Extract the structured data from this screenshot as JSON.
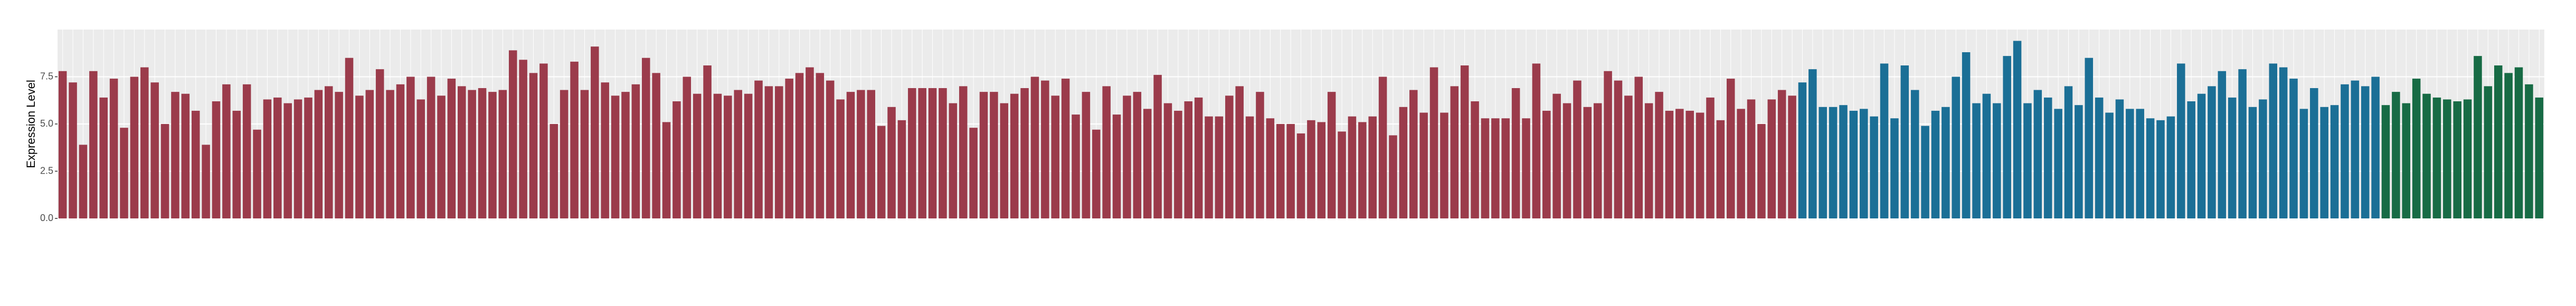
{
  "chart_data": {
    "type": "bar",
    "y_label": "Expression Level",
    "categories": [
      null,
      null,
      null,
      null,
      null,
      null,
      null,
      null,
      null,
      null,
      null,
      null,
      null,
      null,
      null,
      null,
      null,
      null,
      null,
      null,
      null,
      null,
      null,
      null,
      null,
      null,
      null,
      null,
      null,
      null,
      null,
      null,
      null,
      null,
      null,
      null,
      null,
      null,
      null,
      null,
      null,
      null,
      null,
      null,
      null,
      null,
      null,
      null,
      null,
      null,
      null,
      null,
      null,
      null,
      null,
      null,
      null,
      null,
      null,
      null,
      null,
      null,
      null,
      null,
      null,
      null,
      null,
      null,
      null,
      null,
      null,
      null,
      null,
      null,
      null,
      null,
      null,
      null,
      null,
      null,
      null,
      null,
      null,
      null,
      null,
      null,
      null,
      null,
      null,
      null,
      null,
      null,
      null,
      null,
      null,
      null,
      null,
      null,
      null,
      null,
      null,
      null,
      null,
      null,
      null,
      null,
      null,
      null,
      null,
      null,
      null,
      null,
      null,
      null,
      null,
      null,
      null,
      null,
      null,
      null,
      null,
      null,
      null,
      null,
      null,
      null,
      null,
      null,
      null,
      null,
      null,
      null,
      null,
      null,
      null,
      null,
      null,
      null,
      null,
      null,
      null,
      null,
      null,
      null,
      null,
      null,
      null,
      null,
      null,
      null,
      null,
      null,
      null,
      null,
      null,
      null,
      null,
      null,
      null,
      null,
      null,
      null,
      null,
      null,
      null,
      null,
      null,
      null,
      null,
      null,
      null,
      null,
      null,
      null,
      null,
      null,
      null,
      null,
      null,
      null,
      null,
      null,
      null,
      null,
      null,
      null,
      null,
      null,
      null,
      null,
      null,
      null,
      null,
      null,
      null,
      null,
      null,
      null,
      null,
      null,
      null,
      null,
      null,
      null,
      null,
      null,
      null,
      null,
      null,
      null,
      null,
      null,
      null,
      null,
      null,
      null,
      null,
      null,
      null,
      null,
      null,
      null,
      null,
      null,
      null,
      null,
      null,
      null,
      null,
      null,
      null,
      null,
      null,
      null,
      null,
      null,
      null,
      null,
      null,
      null,
      null,
      null,
      null
    ],
    "values": [
      7.8,
      7.2,
      3.9,
      7.8,
      6.4,
      7.4,
      4.8,
      7.5,
      8.0,
      7.2,
      5.0,
      6.7,
      6.6,
      5.7,
      3.9,
      6.2,
      7.1,
      5.7,
      7.1,
      4.7,
      6.3,
      6.4,
      6.1,
      6.3,
      6.4,
      6.8,
      7.0,
      6.7,
      8.5,
      6.5,
      6.8,
      7.9,
      6.8,
      7.1,
      7.5,
      6.3,
      7.5,
      6.5,
      7.4,
      7.0,
      6.8,
      6.9,
      6.7,
      6.8,
      8.9,
      8.4,
      7.7,
      8.2,
      5.0,
      6.8,
      8.3,
      6.8,
      9.1,
      7.2,
      6.5,
      6.7,
      7.1,
      8.5,
      7.7,
      5.1,
      6.2,
      7.5,
      6.6,
      8.1,
      6.6,
      6.5,
      6.8,
      6.6,
      7.3,
      7.0,
      7.0,
      7.4,
      7.7,
      8.0,
      7.7,
      7.3,
      6.3,
      6.7,
      6.8,
      6.8,
      4.9,
      5.9,
      5.2,
      6.9,
      6.9,
      6.9,
      6.9,
      6.1,
      7.0,
      4.8,
      6.7,
      6.7,
      6.1,
      6.6,
      6.9,
      7.5,
      7.3,
      6.5,
      7.4,
      5.5,
      6.7,
      4.7,
      7.0,
      5.5,
      6.5,
      6.7,
      5.8,
      7.6,
      6.1,
      5.7,
      6.2,
      6.4,
      5.4,
      5.4,
      6.5,
      7.0,
      5.4,
      6.7,
      5.3,
      5.0,
      5.0,
      4.5,
      5.2,
      5.1,
      6.7,
      4.6,
      5.4,
      5.1,
      5.4,
      7.5,
      4.4,
      5.9,
      6.8,
      5.6,
      8.0,
      5.6,
      7.0,
      8.1,
      6.2,
      5.3,
      5.3,
      5.3,
      6.9,
      5.3,
      8.2,
      5.7,
      6.6,
      6.1,
      7.3,
      5.9,
      6.1,
      7.8,
      7.3,
      6.5,
      7.5,
      6.1,
      6.7,
      5.7,
      5.8,
      5.7,
      5.6,
      6.4,
      5.2,
      7.4,
      5.8,
      6.3,
      5.0,
      6.3,
      6.8,
      6.5,
      7.2,
      7.9,
      5.9,
      5.9,
      6.0,
      5.7,
      5.8,
      5.4,
      8.2,
      5.3,
      8.1,
      6.8,
      4.9,
      5.7,
      5.9,
      7.5,
      8.8,
      6.1,
      6.6,
      6.1,
      8.6,
      9.4,
      6.1,
      6.8,
      6.4,
      5.8,
      7.0,
      6.0,
      8.5,
      6.4,
      5.6,
      6.3,
      5.8,
      5.8,
      5.3,
      5.2,
      5.4,
      8.2,
      6.2,
      6.6,
      7.0,
      7.8,
      6.4,
      7.9,
      5.9,
      6.3,
      8.2,
      8.0,
      7.4,
      5.8,
      6.9,
      5.9,
      6.0,
      7.1,
      7.3,
      7.0,
      7.5,
      6.0,
      6.7,
      6.1,
      7.4,
      6.6,
      6.4,
      6.3,
      6.2,
      6.3,
      8.6,
      7.0,
      8.1,
      7.7,
      8.0,
      7.1,
      6.4
    ],
    "colors": [
      "#9b3b4b",
      "#9b3b4b",
      "#9b3b4b",
      "#9b3b4b",
      "#9b3b4b",
      "#9b3b4b",
      "#9b3b4b",
      "#9b3b4b",
      "#9b3b4b",
      "#9b3b4b",
      "#9b3b4b",
      "#9b3b4b",
      "#9b3b4b",
      "#9b3b4b",
      "#9b3b4b",
      "#9b3b4b",
      "#9b3b4b",
      "#9b3b4b",
      "#9b3b4b",
      "#9b3b4b",
      "#9b3b4b",
      "#9b3b4b",
      "#9b3b4b",
      "#9b3b4b",
      "#9b3b4b",
      "#9b3b4b",
      "#9b3b4b",
      "#9b3b4b",
      "#9b3b4b",
      "#9b3b4b",
      "#9b3b4b",
      "#9b3b4b",
      "#9b3b4b",
      "#9b3b4b",
      "#9b3b4b",
      "#9b3b4b",
      "#9b3b4b",
      "#9b3b4b",
      "#9b3b4b",
      "#9b3b4b",
      "#9b3b4b",
      "#9b3b4b",
      "#9b3b4b",
      "#9b3b4b",
      "#9b3b4b",
      "#9b3b4b",
      "#9b3b4b",
      "#9b3b4b",
      "#9b3b4b",
      "#9b3b4b",
      "#9b3b4b",
      "#9b3b4b",
      "#9b3b4b",
      "#9b3b4b",
      "#9b3b4b",
      "#9b3b4b",
      "#9b3b4b",
      "#9b3b4b",
      "#9b3b4b",
      "#9b3b4b",
      "#9b3b4b",
      "#9b3b4b",
      "#9b3b4b",
      "#9b3b4b",
      "#9b3b4b",
      "#9b3b4b",
      "#9b3b4b",
      "#9b3b4b",
      "#9b3b4b",
      "#9b3b4b",
      "#9b3b4b",
      "#9b3b4b",
      "#9b3b4b",
      "#9b3b4b",
      "#9b3b4b",
      "#9b3b4b",
      "#9b3b4b",
      "#9b3b4b",
      "#9b3b4b",
      "#9b3b4b",
      "#9b3b4b",
      "#9b3b4b",
      "#9b3b4b",
      "#9b3b4b",
      "#9b3b4b",
      "#9b3b4b",
      "#9b3b4b",
      "#9b3b4b",
      "#9b3b4b",
      "#9b3b4b",
      "#9b3b4b",
      "#9b3b4b",
      "#9b3b4b",
      "#9b3b4b",
      "#9b3b4b",
      "#9b3b4b",
      "#9b3b4b",
      "#9b3b4b",
      "#9b3b4b",
      "#9b3b4b",
      "#9b3b4b",
      "#9b3b4b",
      "#9b3b4b",
      "#9b3b4b",
      "#9b3b4b",
      "#9b3b4b",
      "#9b3b4b",
      "#9b3b4b",
      "#9b3b4b",
      "#9b3b4b",
      "#9b3b4b",
      "#9b3b4b",
      "#9b3b4b",
      "#9b3b4b",
      "#9b3b4b",
      "#9b3b4b",
      "#9b3b4b",
      "#9b3b4b",
      "#9b3b4b",
      "#9b3b4b",
      "#9b3b4b",
      "#9b3b4b",
      "#9b3b4b",
      "#9b3b4b",
      "#9b3b4b",
      "#9b3b4b",
      "#9b3b4b",
      "#9b3b4b",
      "#9b3b4b",
      "#9b3b4b",
      "#9b3b4b",
      "#9b3b4b",
      "#9b3b4b",
      "#9b3b4b",
      "#9b3b4b",
      "#9b3b4b",
      "#9b3b4b",
      "#9b3b4b",
      "#9b3b4b",
      "#9b3b4b",
      "#9b3b4b",
      "#9b3b4b",
      "#9b3b4b",
      "#9b3b4b",
      "#9b3b4b",
      "#9b3b4b",
      "#9b3b4b",
      "#9b3b4b",
      "#9b3b4b",
      "#9b3b4b",
      "#9b3b4b",
      "#9b3b4b",
      "#9b3b4b",
      "#9b3b4b",
      "#9b3b4b",
      "#9b3b4b",
      "#9b3b4b",
      "#9b3b4b",
      "#9b3b4b",
      "#9b3b4b",
      "#9b3b4b",
      "#9b3b4b",
      "#9b3b4b",
      "#9b3b4b",
      "#9b3b4b",
      "#9b3b4b",
      "#9b3b4b",
      "#9b3b4b",
      "#9b3b4b",
      "#9b3b4b",
      "#1b6f96",
      "#1b6f96",
      "#1b6f96",
      "#1b6f96",
      "#1b6f96",
      "#1b6f96",
      "#1b6f96",
      "#1b6f96",
      "#1b6f96",
      "#1b6f96",
      "#1b6f96",
      "#1b6f96",
      "#1b6f96",
      "#1b6f96",
      "#1b6f96",
      "#1b6f96",
      "#1b6f96",
      "#1b6f96",
      "#1b6f96",
      "#1b6f96",
      "#1b6f96",
      "#1b6f96",
      "#1b6f96",
      "#1b6f96",
      "#1b6f96",
      "#1b6f96",
      "#1b6f96",
      "#1b6f96",
      "#1b6f96",
      "#1b6f96",
      "#1b6f96",
      "#1b6f96",
      "#1b6f96",
      "#1b6f96",
      "#1b6f96",
      "#1b6f96",
      "#1b6f96",
      "#1b6f96",
      "#1b6f96",
      "#1b6f96",
      "#1b6f96",
      "#1b6f96",
      "#1b6f96",
      "#1b6f96",
      "#1b6f96",
      "#1b6f96",
      "#1b6f96",
      "#1b6f96",
      "#1b6f96",
      "#1b6f96",
      "#1b6f96",
      "#1b6f96",
      "#1b6f96",
      "#1b6f96",
      "#1b6f96",
      "#1b6f96",
      "#1b6f96",
      "#176b45",
      "#176b45",
      "#176b45",
      "#176b45",
      "#176b45",
      "#176b45",
      "#176b45",
      "#176b45",
      "#176b45",
      "#176b45",
      "#176b45",
      "#176b45",
      "#176b45",
      "#176b45",
      "#176b45",
      "#176b45"
    ],
    "ylim": [
      0,
      10
    ],
    "yticks": [
      {
        "value": 0,
        "label": "0.0"
      },
      {
        "value": 2.5,
        "label": "2.5"
      },
      {
        "value": 5,
        "label": "5.0"
      },
      {
        "value": 7.5,
        "label": "7.5"
      }
    ],
    "grid": true
  }
}
